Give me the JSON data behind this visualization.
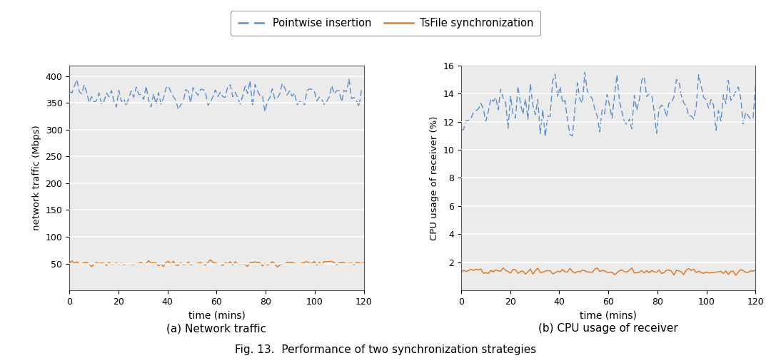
{
  "title": "Fig. 13.  Performance of two synchronization strategies",
  "subplot_a_title": "(a) Network traffic",
  "subplot_b_title": "(b) CPU usage of receiver",
  "xlabel": "time (mins)",
  "ylabel_a": "network traffic (Mbps)",
  "ylabel_b": "CPU usage of receiver (%)",
  "xlim": [
    0,
    120
  ],
  "ylim_a": [
    0,
    420
  ],
  "ylim_b": [
    0,
    16
  ],
  "yticks_a": [
    50,
    100,
    150,
    200,
    250,
    300,
    350,
    400
  ],
  "yticks_b": [
    2,
    4,
    6,
    8,
    10,
    12,
    14,
    16
  ],
  "xticks": [
    0,
    20,
    40,
    60,
    80,
    100,
    120
  ],
  "color_pointwise": "#5b8ec9",
  "color_tsfile": "#e07b2a",
  "legend_label_1": "Pointwise insertion",
  "legend_label_2": "TsFile synchronization",
  "bg_color": "#ebebeb",
  "grid_color": "#ffffff",
  "spine_color": "#555555",
  "pointwise_mean_a": 365,
  "pointwise_std_a": 12,
  "tsfile_mean_a": 50,
  "tsfile_std_a": 2.5,
  "pointwise_mean_b": 13.2,
  "pointwise_std_b": 0.8,
  "tsfile_mean_b": 1.35,
  "tsfile_std_b": 0.12,
  "n_points": 120
}
